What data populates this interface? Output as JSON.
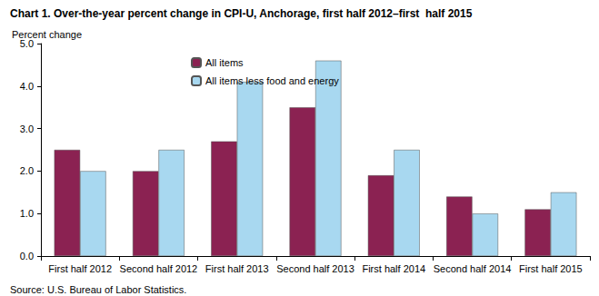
{
  "chart_data": {
    "type": "bar",
    "title": "Chart 1. Over-the-year percent change in CPI-U, Anchorage, first half 2012–first  half 2015",
    "y_label": "Percent change",
    "source": "Source: U.S. Bureau of Labor Statistics.",
    "categories": [
      "First half 2012",
      "Second half 2012",
      "First half 2013",
      "Second half 2013",
      "First half 2014",
      "Second half 2014",
      "First half 2015"
    ],
    "series": [
      {
        "name": "All items",
        "color": "#8b2252",
        "values": [
          2.5,
          2.0,
          2.7,
          3.5,
          1.9,
          1.4,
          1.1
        ]
      },
      {
        "name": "All items less food and energy",
        "color": "#a8d8f0",
        "values": [
          2.0,
          2.5,
          4.1,
          4.6,
          2.5,
          1.0,
          1.5
        ]
      }
    ],
    "ylim": [
      0,
      5
    ],
    "yticks": [
      {
        "value": 0,
        "label": "0.0"
      },
      {
        "value": 1,
        "label": "1.0"
      },
      {
        "value": 2,
        "label": "2.0"
      },
      {
        "value": 3,
        "label": "3.0"
      },
      {
        "value": 4,
        "label": "4.0"
      },
      {
        "value": 5,
        "label": "5.0"
      }
    ],
    "grid": false,
    "legend": "top-left"
  }
}
